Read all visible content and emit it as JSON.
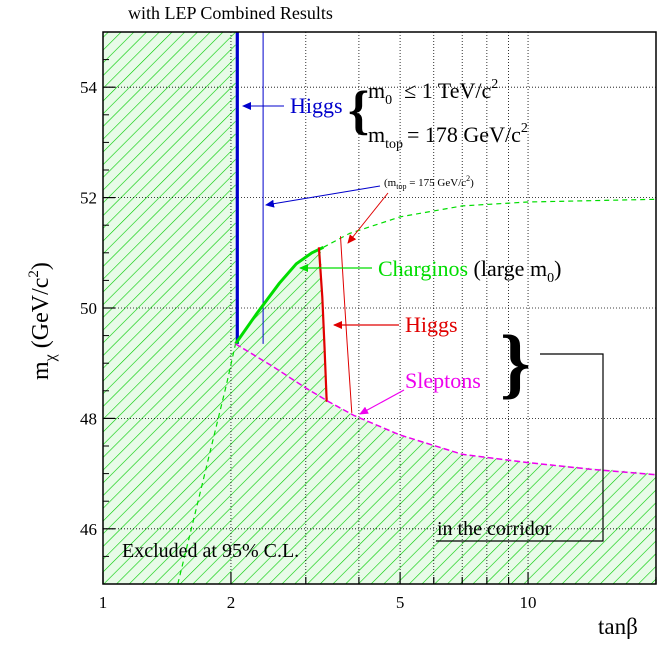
{
  "chart_data": {
    "type": "line",
    "title": "with LEP Combined Results",
    "xlabel": "tanβ",
    "ylabel": {
      "main": "m",
      "sub": "χ",
      "unit": " (GeV/c",
      "sup": "2",
      "close": ")"
    },
    "x_scale": "log",
    "xlim": [
      1,
      20
    ],
    "ylim": [
      45,
      55
    ],
    "x_ticks": [
      1,
      2,
      5,
      10
    ],
    "y_ticks": [
      46,
      48,
      50,
      52,
      54
    ],
    "grid": true,
    "colors": {
      "higgs_blue": "#0000cc",
      "higgs_red": "#e00000",
      "charginos": "#00dd00",
      "sleptons": "#ee00ee",
      "hatch": "#00cc00",
      "hatch_fill": "#e8fbe8"
    },
    "excluded_region": [
      [
        1,
        55
      ],
      [
        2.05,
        55
      ],
      [
        2.05,
        49.35
      ],
      [
        2.8,
        50.75
      ],
      [
        3.25,
        51.1
      ],
      [
        3.38,
        48.3
      ],
      [
        3.9,
        48.05
      ],
      [
        5,
        47.7
      ],
      [
        7,
        47.35
      ],
      [
        10,
        47.2
      ],
      [
        20,
        47.0
      ],
      [
        20,
        45
      ],
      [
        1,
        45
      ]
    ],
    "series": [
      {
        "key": "higgs_blue_thick",
        "color": "#0000cc",
        "width": 3.2,
        "points": [
          [
            2.07,
            55
          ],
          [
            2.07,
            49.35
          ]
        ]
      },
      {
        "key": "higgs_blue_thin",
        "color": "#0000cc",
        "width": 1,
        "points": [
          [
            2.38,
            55
          ],
          [
            2.38,
            49.35
          ]
        ]
      },
      {
        "key": "charginos_solid",
        "color": "#00dd00",
        "width": 3,
        "points": [
          [
            2.05,
            49.35
          ],
          [
            2.3,
            49.9
          ],
          [
            2.6,
            50.45
          ],
          [
            2.85,
            50.8
          ],
          [
            3.1,
            51.0
          ],
          [
            3.3,
            51.1
          ]
        ]
      },
      {
        "key": "charginos_dashed",
        "color": "#00dd00",
        "width": 1.2,
        "dash": "5,4",
        "points": [
          [
            3.3,
            51.1
          ],
          [
            3.8,
            51.35
          ],
          [
            5,
            51.65
          ],
          [
            7,
            51.85
          ],
          [
            10,
            51.92
          ],
          [
            20,
            51.97
          ]
        ]
      },
      {
        "key": "charginos_dashed_low",
        "color": "#00dd00",
        "width": 1.2,
        "dash": "5,4",
        "points": [
          [
            1.5,
            45
          ],
          [
            1.65,
            46.3
          ],
          [
            1.8,
            47.5
          ],
          [
            1.95,
            48.6
          ],
          [
            2.05,
            49.35
          ]
        ]
      },
      {
        "key": "higgs_red_thick",
        "color": "#e00000",
        "width": 2.2,
        "points": [
          [
            3.22,
            51.1
          ],
          [
            3.28,
            50.2
          ],
          [
            3.32,
            49.3
          ],
          [
            3.36,
            48.3
          ]
        ]
      },
      {
        "key": "higgs_red_thin",
        "color": "#e00000",
        "width": 1,
        "points": [
          [
            3.62,
            51.3
          ],
          [
            3.68,
            50.4
          ],
          [
            3.75,
            49.4
          ],
          [
            3.85,
            48.1
          ]
        ]
      },
      {
        "key": "sleptons_dashed",
        "color": "#ee00ee",
        "width": 1.5,
        "dash": "6,3",
        "points": [
          [
            2.05,
            49.35
          ],
          [
            2.5,
            48.95
          ],
          [
            3.0,
            48.55
          ],
          [
            3.4,
            48.3
          ],
          [
            3.9,
            48.05
          ],
          [
            5,
            47.7
          ],
          [
            7,
            47.35
          ],
          [
            10,
            47.2
          ],
          [
            14,
            47.08
          ],
          [
            20,
            46.98
          ]
        ]
      }
    ]
  },
  "annotations": {
    "higgs_blue": "Higgs",
    "m0_condition": {
      "m": "m",
      "sub": "0",
      "rel": "≤ 1 TeV/c",
      "sup": "2"
    },
    "mtop_condition": {
      "m": "m",
      "sub": "top",
      "rel": "= 178 GeV/c",
      "sup": "2"
    },
    "mtop_alt": {
      "open": "(m",
      "sub": "top",
      "rel": " = 175 GeV/c",
      "sup": "2",
      "close": ")"
    },
    "charginos": "Charginos",
    "charginos_note": {
      "text": " (large m",
      "sub": "0",
      "close": ")"
    },
    "higgs_red": "Higgs",
    "sleptons": "Sleptons",
    "corridor": "in the corridor",
    "excluded": "Excluded at 95% C.L."
  }
}
